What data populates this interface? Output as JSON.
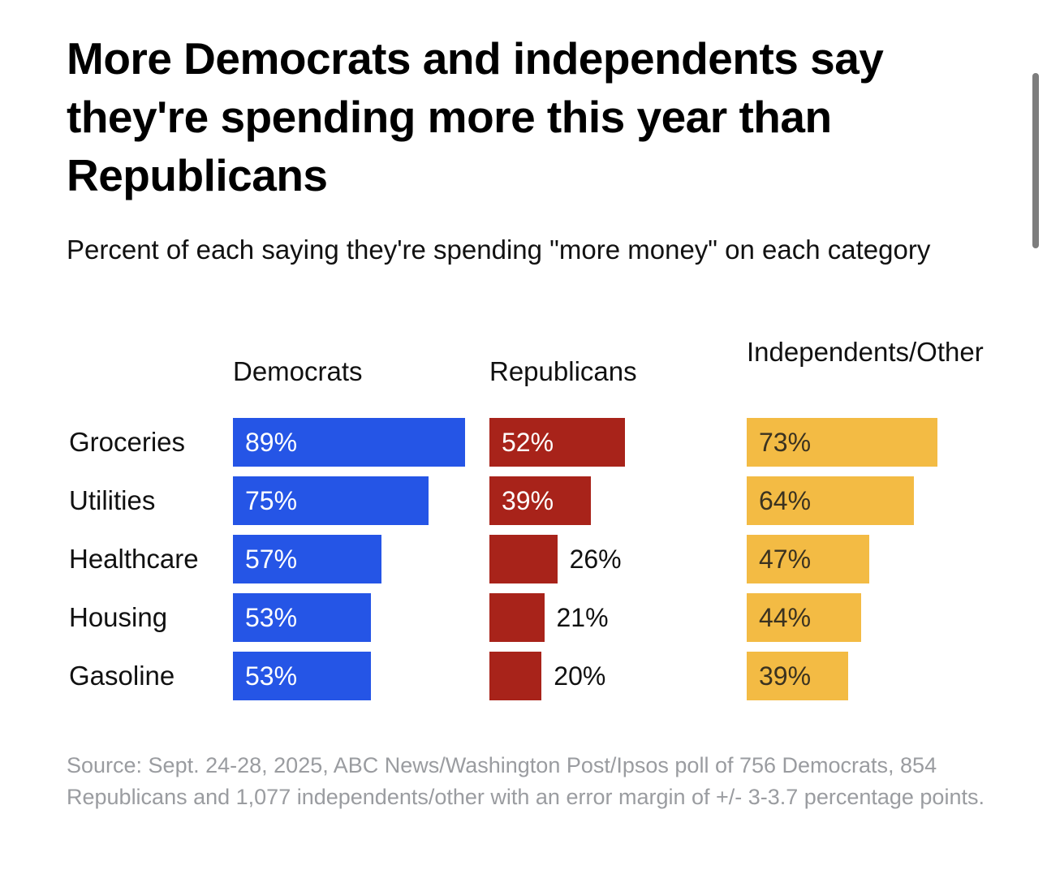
{
  "chart_data": {
    "type": "bar",
    "orientation": "horizontal",
    "layout": "small-multiples",
    "title": "More Democrats and independents say they're spending more this year than Republicans",
    "subtitle": "Percent of each saying they're spending \"more money\" on each category",
    "categories": [
      "Groceries",
      "Utilities",
      "Healthcare",
      "Housing",
      "Gasoline"
    ],
    "series": [
      {
        "name": "Democrats",
        "color": "#2555E6",
        "label_color": "#ffffff",
        "values": [
          89,
          75,
          57,
          53,
          53
        ],
        "labels": [
          "89%",
          "75%",
          "57%",
          "53%",
          "53%"
        ]
      },
      {
        "name": "Republicans",
        "color": "#A8231A",
        "label_color": "#ffffff",
        "values": [
          52,
          39,
          26,
          21,
          20
        ],
        "labels": [
          "52%",
          "39%",
          "26%",
          "21%",
          "20%"
        ]
      },
      {
        "name": "Independents/Other",
        "color": "#F3BB44",
        "label_color": "#3a3220",
        "values": [
          73,
          64,
          47,
          44,
          39
        ],
        "labels": [
          "73%",
          "64%",
          "47%",
          "44%",
          "39%"
        ]
      }
    ],
    "unit": "%",
    "xlim": [
      0,
      100
    ],
    "grid": false,
    "legend": "column headers",
    "source": "Source: Sept. 24-28, 2025, ABC News/Washington Post/Ipsos poll of 756 Democrats, 854 Republicans and 1,077 independents/other with an error margin of +/- 3-3.7 percentage points."
  }
}
